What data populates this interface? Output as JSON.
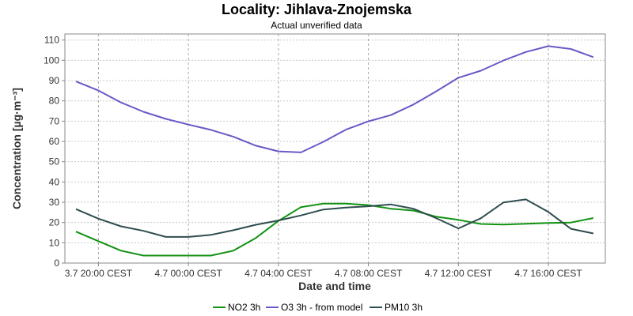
{
  "chart_data": {
    "type": "line",
    "title": "Locality: Jihlava-Znojemska",
    "subtitle": "Actual unverified data",
    "xlabel": "Date and time",
    "ylabel": "Concentration [µg·m⁻³]",
    "ylim": [
      0,
      113
    ],
    "yticks": [
      0,
      10,
      20,
      30,
      40,
      50,
      60,
      70,
      80,
      90,
      100,
      110
    ],
    "x": [
      "3.7 19:00",
      "3.7 20:00",
      "3.7 21:00",
      "3.7 22:00",
      "3.7 23:00",
      "4.7 00:00",
      "4.7 01:00",
      "4.7 02:00",
      "4.7 03:00",
      "4.7 04:00",
      "4.7 05:00",
      "4.7 06:00",
      "4.7 07:00",
      "4.7 08:00",
      "4.7 09:00",
      "4.7 10:00",
      "4.7 11:00",
      "4.7 12:00",
      "4.7 13:00",
      "4.7 14:00",
      "4.7 15:00",
      "4.7 16:00",
      "4.7 17:00",
      "4.7 18:00"
    ],
    "xticks": [
      {
        "label": "3.7 20:00 CEST",
        "index": 1
      },
      {
        "label": "4.7 00:00 CEST",
        "index": 5
      },
      {
        "label": "4.7 04:00 CEST",
        "index": 9
      },
      {
        "label": "4.7 08:00 CEST",
        "index": 13
      },
      {
        "label": "4.7 12:00 CEST",
        "index": 17
      },
      {
        "label": "4.7 16:00 CEST",
        "index": 21
      }
    ],
    "grid": true,
    "legend_position": "bottom",
    "series": [
      {
        "name": "NO2 3h",
        "color": "#129212",
        "values": [
          15.5,
          10.8,
          6.1,
          3.7,
          3.7,
          3.7,
          3.7,
          6.1,
          12.4,
          20.8,
          27.6,
          29.3,
          29.3,
          28.6,
          26.8,
          25.9,
          22.9,
          21.3,
          19.3,
          19.0,
          19.4,
          19.8,
          20.0,
          22.2
        ]
      },
      {
        "name": "O3 3h - from model",
        "color": "#6A59C6",
        "values": [
          89.6,
          85.1,
          79.2,
          74.6,
          71.1,
          68.3,
          65.7,
          62.3,
          57.9,
          55.1,
          54.6,
          59.8,
          65.8,
          69.9,
          73.0,
          78.2,
          84.6,
          91.4,
          94.9,
          99.9,
          104.1,
          107.0,
          105.6,
          101.6
        ]
      },
      {
        "name": "PM10 3h",
        "color": "#2E4D4F",
        "values": [
          26.6,
          21.9,
          18.1,
          15.9,
          12.9,
          12.9,
          13.9,
          16.2,
          18.9,
          21.0,
          23.5,
          26.4,
          27.4,
          28.0,
          28.9,
          26.8,
          22.2,
          17.1,
          22.1,
          29.9,
          31.4,
          25.2,
          16.9,
          14.6
        ]
      }
    ]
  }
}
